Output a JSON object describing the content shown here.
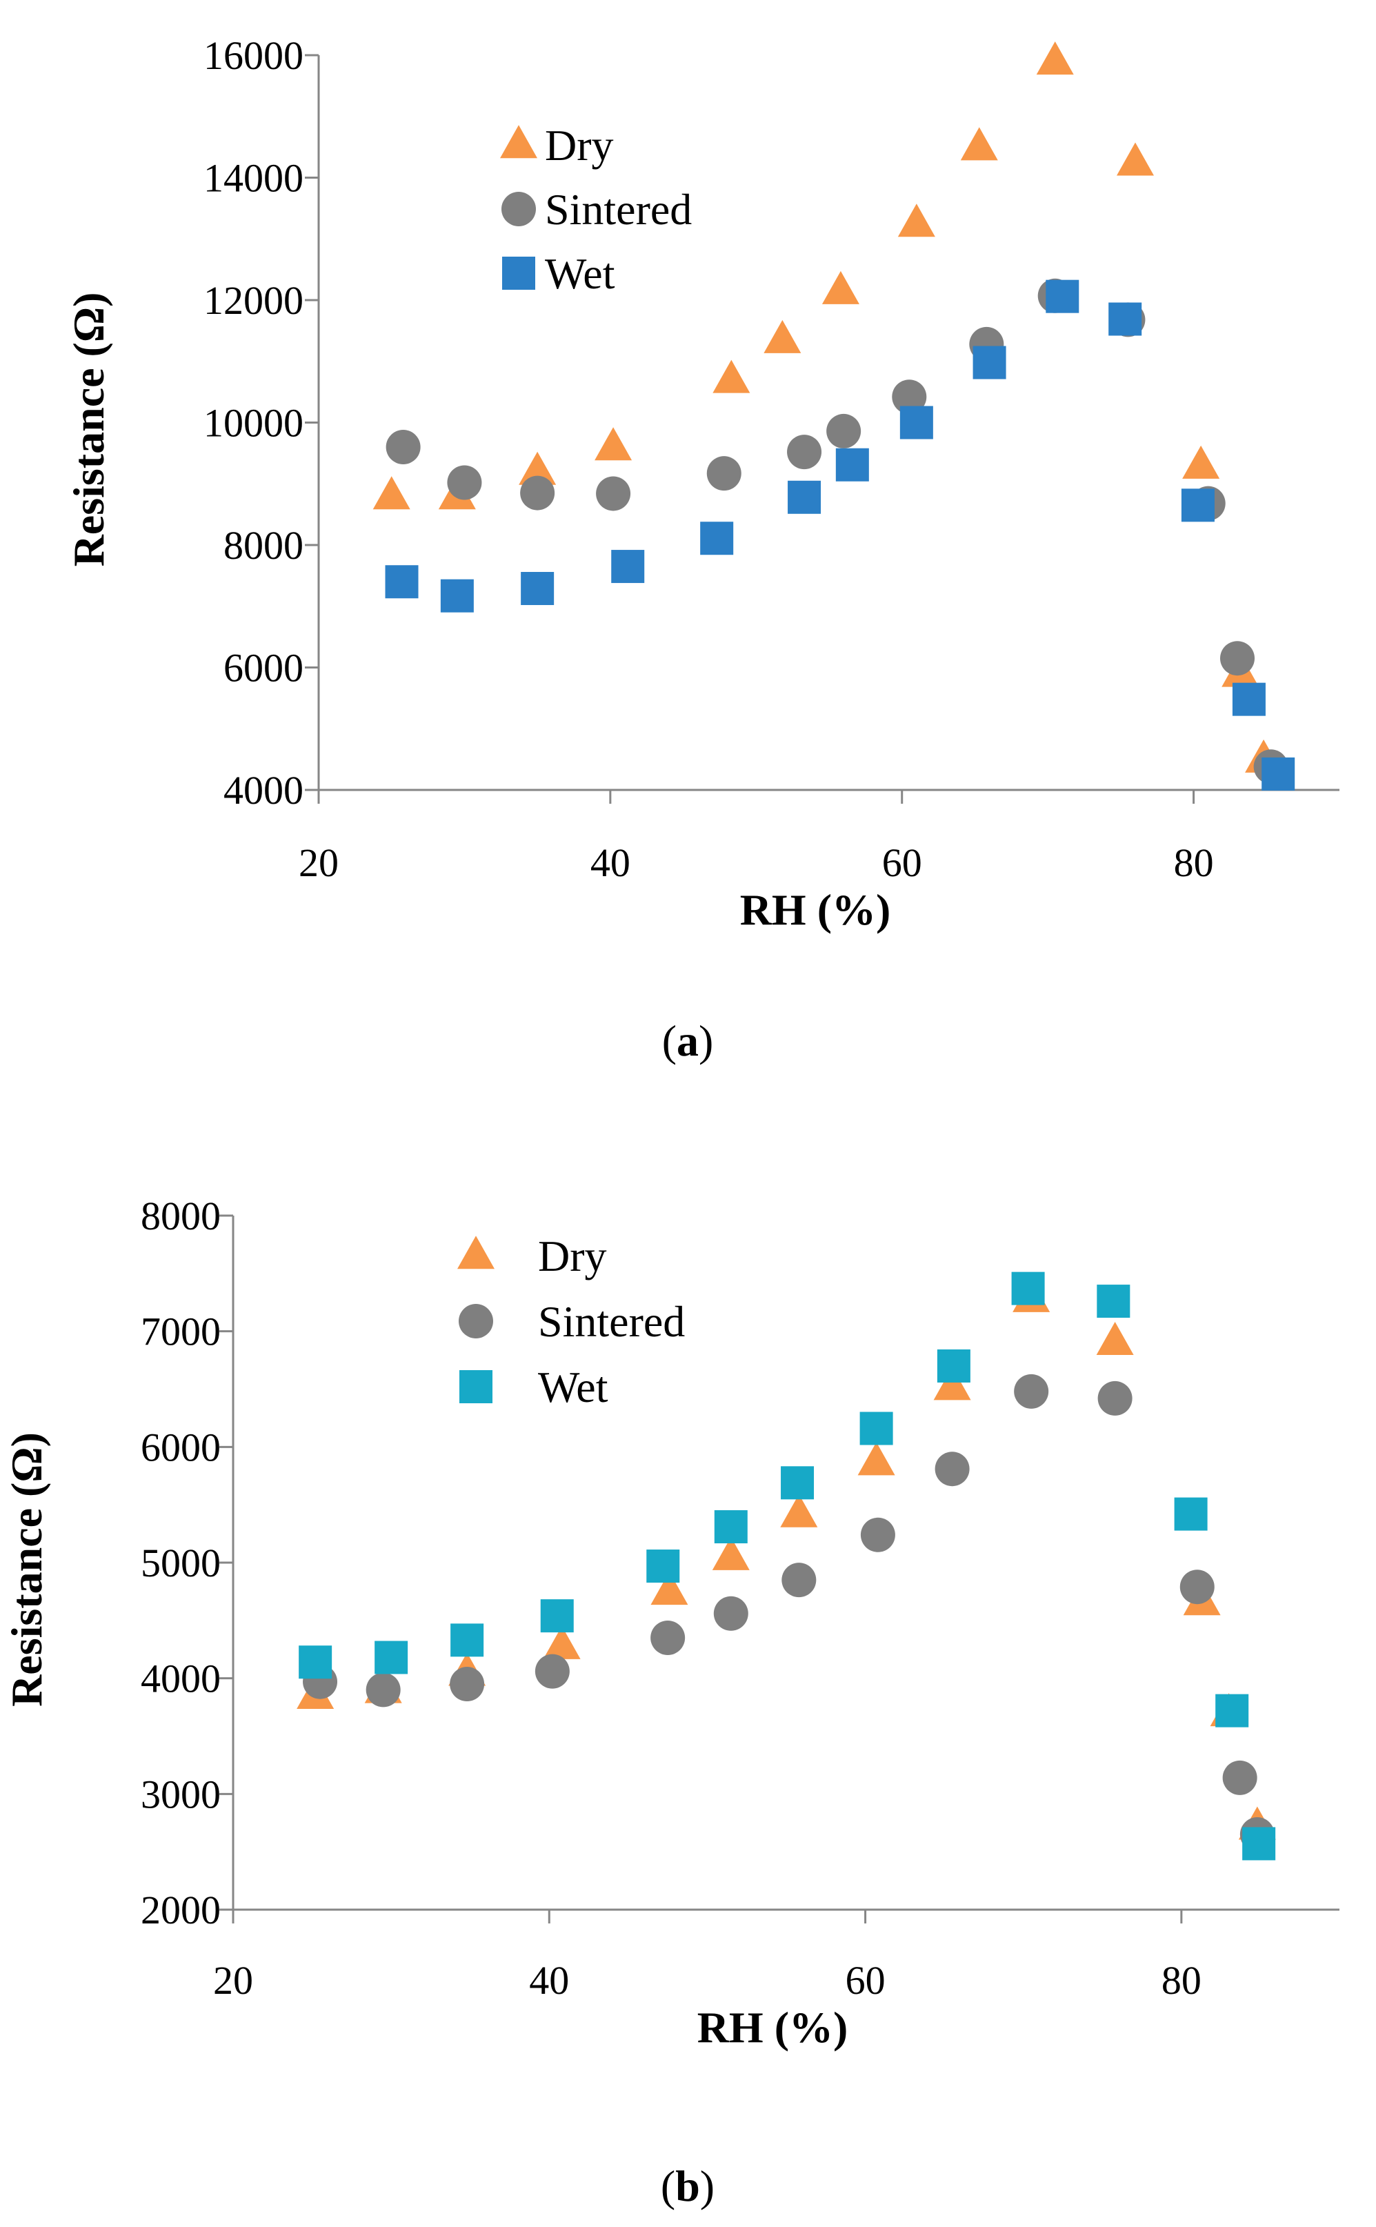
{
  "chart_data": [
    {
      "type": "scatter",
      "xlabel": "RH (%)",
      "ylabel": "Resistance (Ω)",
      "caption_label": "a",
      "xlim": [
        20,
        90
      ],
      "ylim": [
        4000,
        16000
      ],
      "xticks": [
        20,
        40,
        60,
        80
      ],
      "yticks": [
        4000,
        6000,
        8000,
        10000,
        12000,
        14000,
        16000
      ],
      "grid": false,
      "legend_position": "top-left",
      "series": [
        {
          "name": "Dry",
          "marker": "triangle",
          "color": "#F79646",
          "x": [
            25,
            29.5,
            35,
            40.2,
            48.3,
            51.8,
            55.8,
            61,
            65.3,
            70.5,
            76,
            80.5,
            83.2,
            84.8
          ],
          "y": [
            8800,
            8800,
            9200,
            9600,
            10700,
            11350,
            12150,
            13250,
            14500,
            15900,
            14250,
            9300,
            5900,
            4500
          ]
        },
        {
          "name": "Sintered",
          "marker": "circle",
          "color": "#7F7F7F",
          "x": [
            25.8,
            30,
            35,
            40.2,
            47.8,
            53.3,
            56,
            60.5,
            65.8,
            70.5,
            75.5,
            81,
            83,
            85.3
          ],
          "y": [
            9600,
            9020,
            8850,
            8840,
            9170,
            9520,
            9860,
            10420,
            11280,
            12070,
            11680,
            8680,
            6150,
            4380
          ]
        },
        {
          "name": "Wet",
          "marker": "square",
          "color": "#2B7FC6",
          "x": [
            25.7,
            29.5,
            35,
            41.2,
            47.3,
            53.3,
            56.6,
            61,
            66,
            71,
            75.3,
            80.3,
            83.8,
            85.8
          ],
          "y": [
            7400,
            7170,
            7290,
            7650,
            8110,
            8780,
            9310,
            10000,
            10980,
            12060,
            11690,
            8650,
            5480,
            4260
          ]
        }
      ]
    },
    {
      "type": "scatter",
      "xlabel": "RH (%)",
      "ylabel": "Resistance (Ω)",
      "caption_label": "b",
      "xlim": [
        20,
        90
      ],
      "ylim": [
        2000,
        8000
      ],
      "xticks": [
        20,
        40,
        60,
        80
      ],
      "yticks": [
        2000,
        3000,
        4000,
        5000,
        6000,
        7000,
        8000
      ],
      "grid": false,
      "legend_position": "top-left",
      "series": [
        {
          "name": "Dry",
          "marker": "triangle",
          "color": "#F79646",
          "x": [
            25.2,
            29.5,
            34.8,
            40.8,
            47.6,
            51.5,
            55.8,
            60.7,
            65.5,
            70.5,
            75.8,
            81.3,
            83,
            84.8
          ],
          "y": [
            3850,
            3900,
            4050,
            4280,
            4750,
            5050,
            5420,
            5870,
            6520,
            7280,
            6910,
            4660,
            3700,
            2720
          ]
        },
        {
          "name": "Sintered",
          "marker": "circle",
          "color": "#7F7F7F",
          "x": [
            25.5,
            29.5,
            34.8,
            40.2,
            47.5,
            51.5,
            55.8,
            60.8,
            65.5,
            70.5,
            75.8,
            81,
            83.7,
            84.8
          ],
          "y": [
            3970,
            3900,
            3950,
            4060,
            4350,
            4560,
            4850,
            5240,
            5810,
            6480,
            6420,
            4790,
            3140,
            2650
          ]
        },
        {
          "name": "Wet",
          "marker": "square",
          "color": "#17A9C7",
          "x": [
            25.2,
            30,
            34.8,
            40.5,
            47.2,
            51.5,
            55.7,
            60.7,
            65.6,
            70.3,
            75.7,
            80.6,
            83.2,
            84.9
          ],
          "y": [
            4140,
            4180,
            4330,
            4540,
            4970,
            5310,
            5690,
            6160,
            6700,
            7370,
            7260,
            5420,
            3720,
            2570
          ]
        }
      ]
    }
  ]
}
